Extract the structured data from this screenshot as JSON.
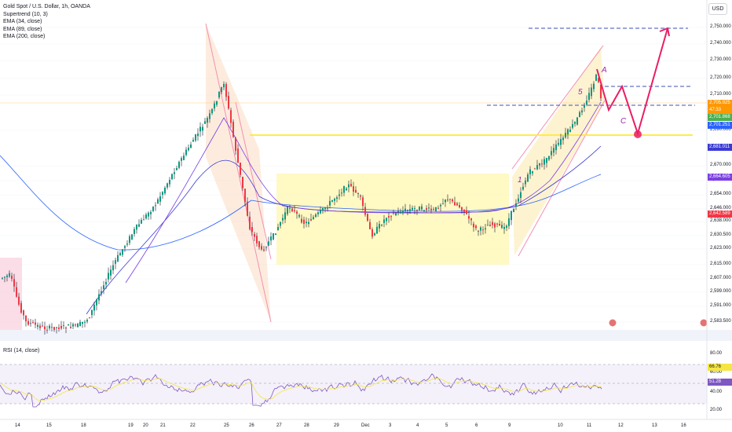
{
  "chart_title": "Gold Spot / U.S. Dollar, 1h, OANDA",
  "indicators": [
    "Supertrend (10, 3)",
    "EMA (34, close)",
    "EMA (89, close)",
    "EMA (200, close)"
  ],
  "currency_button": "USD",
  "price_ticks": [
    "2,750.000",
    "2,740.000",
    "2,730.000",
    "2,720.000",
    "2,710.000",
    "2,690.000",
    "2,670.000",
    "2,662.000",
    "2,654.000",
    "2,646.000",
    "2,638.000",
    "2,630.500",
    "2,623.000",
    "2,615.000",
    "2,607.000",
    "2,599.000",
    "2,591.000",
    "2,583.500"
  ],
  "price_tags": [
    {
      "text": "2,705.925",
      "color": "#ff9800"
    },
    {
      "text": "47:33",
      "color": "#ff9800"
    },
    {
      "text": "2,701.868",
      "color": "#4caf50"
    },
    {
      "text": "2,701.251",
      "color": "#2962ff"
    },
    {
      "text": "2,681.011",
      "color": "#3a3ad6"
    },
    {
      "text": "2,664.605",
      "color": "#7b3fe4"
    },
    {
      "text": "2,642.589",
      "color": "#f23645"
    }
  ],
  "rsi": {
    "title": "RSI (14, close)",
    "ticks": [
      "80.00",
      "60.00",
      "40.00",
      "20.00"
    ],
    "value_tags": [
      {
        "text": "66.76",
        "color": "#f5e642",
        "text_color": "#131722"
      },
      {
        "text": "51.28",
        "color": "#7e57c2",
        "text_color": "#ffffff"
      }
    ]
  },
  "time_labels": [
    "14",
    "15",
    "18",
    "19",
    "20",
    "21",
    "22",
    "25",
    "26",
    "27",
    "28",
    "29",
    "Dec",
    "3",
    "4",
    "5",
    "6",
    "9",
    "10",
    "11",
    "12",
    "13",
    "16"
  ],
  "wave_labels": [
    "1",
    "5",
    "A",
    "C"
  ],
  "colors": {
    "background": "#ffffff",
    "up_candle": "#089981",
    "down_candle": "#f23645",
    "range_box": "#fff59d",
    "projection": "#e91e63",
    "dashed_level": "#3f51b5",
    "ema": "#2962ff",
    "rsi_line": "#7e57c2"
  },
  "chart_data": {
    "type": "candlestick",
    "symbol": "Gold Spot / U.S. Dollar",
    "interval": "1h",
    "price_range": [
      2583.5,
      2752
    ],
    "rsi_range": [
      15,
      85
    ],
    "rsi_levels": [
      70,
      50,
      30
    ],
    "key_levels": [
      2748,
      2714,
      2704,
      2692
    ],
    "projection_path": [
      2724,
      2704,
      2714,
      2692,
      2748
    ],
    "ranging_zone": [
      2612,
      2666
    ]
  }
}
